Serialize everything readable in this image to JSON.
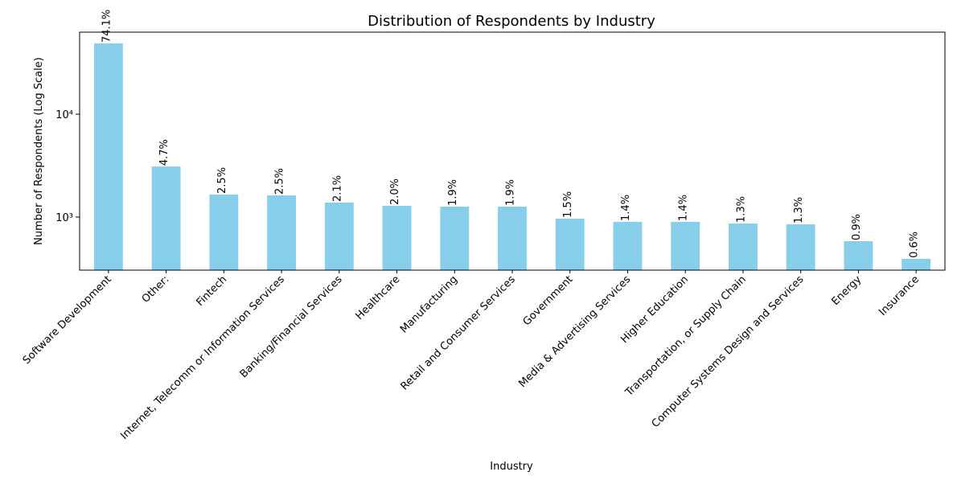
{
  "chart_data": {
    "type": "bar",
    "title": "Distribution of Respondents by Industry",
    "x_label": "Industry",
    "y_label": "Number of Respondents (Log Scale)",
    "categories": [
      "Software Development",
      "Other:",
      "Fintech",
      "Internet, Telecomm or Information Services",
      "Banking/Financial Services",
      "Healthcare",
      "Manufacturing",
      "Retail and Consumer Services",
      "Government",
      "Media & Advertising Services",
      "Higher Education",
      "Transportation, or Supply Chain",
      "Computer Systems Design and Services",
      "Energy",
      "Insurance"
    ],
    "values": [
      48700,
      3100,
      1656,
      1625,
      1383,
      1286,
      1263,
      1263,
      965,
      898,
      898,
      866,
      850,
      583,
      393
    ],
    "percent_labels": [
      "74.1%",
      "4.7%",
      "2.5%",
      "2.5%",
      "2.1%",
      "2.0%",
      "1.9%",
      "1.9%",
      "1.5%",
      "1.4%",
      "1.4%",
      "1.3%",
      "1.3%",
      "0.9%",
      "0.6%"
    ],
    "color": "#87ceeb",
    "log_scale": true,
    "ylim": [
      305,
      62700
    ],
    "yticks": [
      {
        "value": 1000,
        "label": "10³"
      },
      {
        "value": 10000,
        "label": "10⁴"
      }
    ]
  }
}
